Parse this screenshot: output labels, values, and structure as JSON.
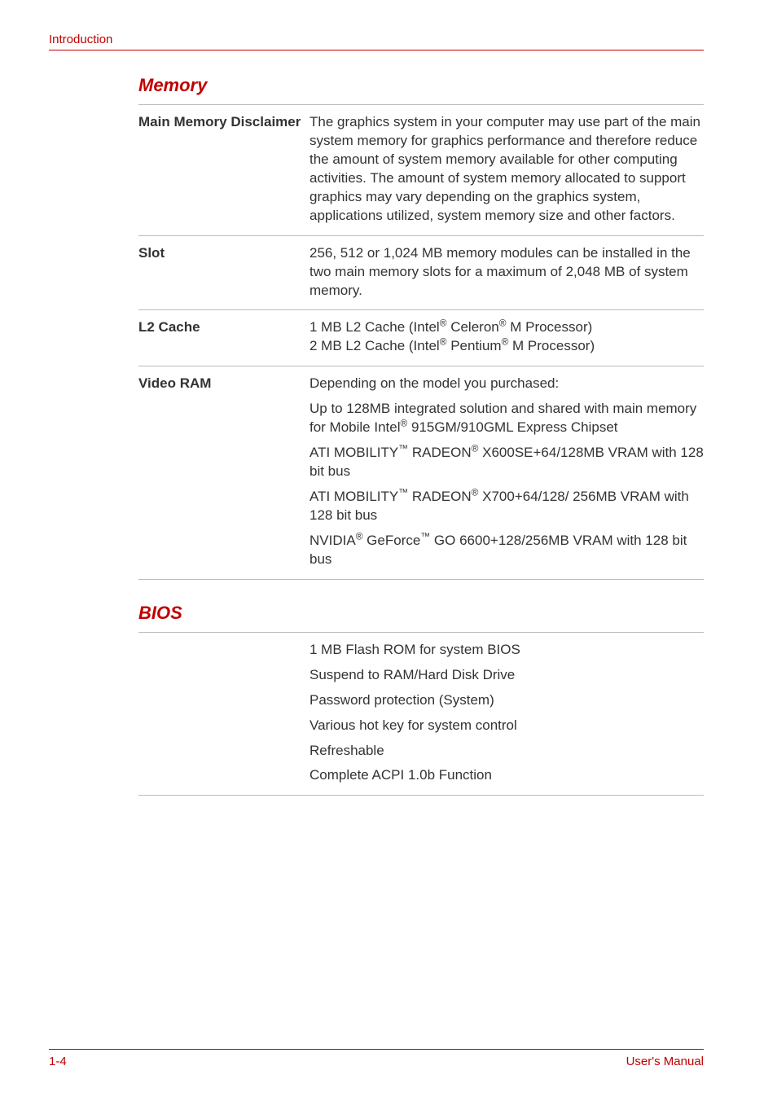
{
  "colors": {
    "accent": "#c00000",
    "text": "#333333",
    "rule_gray": "#bbbbbb",
    "background": "#ffffff"
  },
  "typography": {
    "body_font": "Arial, Helvetica, sans-serif",
    "section_title_size_pt": 16,
    "body_size_pt": 12.5,
    "header_size_pt": 11,
    "footer_size_pt": 11
  },
  "header": {
    "label": "Introduction"
  },
  "sections": {
    "memory": {
      "title": "Memory",
      "rows": [
        {
          "label": "Main Memory Disclaimer",
          "paragraphs": [
            "The graphics system in your computer may use part of the main system memory for graphics performance and therefore reduce the amount of system memory available for other computing activities. The amount of system memory allocated to support graphics may vary depending on the graphics system, applications utilized, system memory size and other factors."
          ]
        },
        {
          "label": "Slot",
          "paragraphs": [
            "256, 512 or 1,024 MB memory modules can be installed in the two main memory slots for a maximum of 2,048 MB of system memory."
          ]
        },
        {
          "label": "L2 Cache",
          "paragraphs": [
            "1 MB L2 Cache (Intel® Celeron® M Processor)\n2 MB L2 Cache (Intel® Pentium® M Processor)"
          ]
        },
        {
          "label": "Video RAM",
          "paragraphs": [
            "Depending on the model you purchased:",
            "Up to 128MB integrated solution and shared with main memory for Mobile Intel® 915GM/910GML Express Chipset",
            "ATI MOBILITY™ RADEON® X600SE+64/128MB VRAM with 128 bit bus",
            "ATI MOBILITY™ RADEON® X700+64/128/ 256MB VRAM with 128 bit bus",
            "NVIDIA® GeForce™ GO 6600+128/256MB VRAM with 128 bit bus"
          ]
        }
      ]
    },
    "bios": {
      "title": "BIOS",
      "rows": [
        {
          "label": "",
          "paragraphs": [
            "1 MB Flash ROM for system BIOS",
            "Suspend to RAM/Hard Disk Drive",
            "Password protection (System)",
            "Various hot key for system control",
            "Refreshable",
            "Complete ACPI 1.0b Function"
          ]
        }
      ]
    }
  },
  "footer": {
    "page": "1-4",
    "right": "User's Manual"
  }
}
